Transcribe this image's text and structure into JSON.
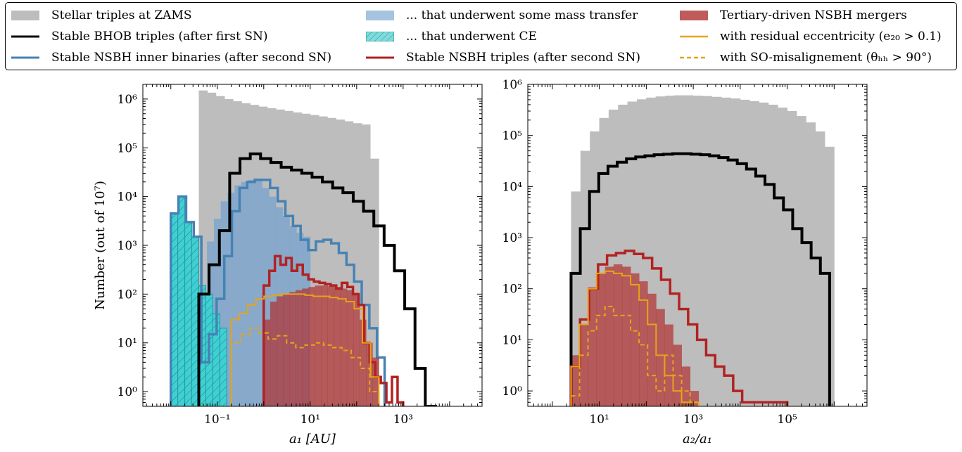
{
  "legend": {
    "items": [
      {
        "key": "zams",
        "label": "Stellar triples at ZAMS",
        "kind": "patch",
        "color": "#bdbdbd"
      },
      {
        "key": "bhob",
        "label": "Stable BHOB triples (after first SN)",
        "kind": "line",
        "color": "#000000"
      },
      {
        "key": "nsbh_inner",
        "label": "Stable NSBH inner binaries (after second SN)",
        "kind": "line",
        "color": "#4682b4"
      },
      {
        "key": "mt",
        "label": "... that underwent some mass transfer",
        "kind": "patch",
        "color": "#a6c3e0"
      },
      {
        "key": "ce",
        "label": "... that underwent CE",
        "kind": "hatch",
        "color": "#7fdcdc"
      },
      {
        "key": "nsbh_triple",
        "label": "Stable NSBH triples (after second SN)",
        "kind": "line",
        "color": "#b22222"
      },
      {
        "key": "merger",
        "label": "Tertiary-driven NSBH mergers",
        "kind": "patch",
        "color": "#c05b5b"
      },
      {
        "key": "ecc",
        "label": "with residual eccentricity (e₂₀ > 0.1)",
        "kind": "line",
        "color": "#e8a317"
      },
      {
        "key": "so",
        "label": "with SO-misalignement (θₕₕ > 90°)",
        "kind": "dash",
        "color": "#e8a317"
      }
    ]
  },
  "chart_data": [
    {
      "type": "histogram",
      "xlabel": "a₁ [AU]",
      "ylabel": "Number (out of 10⁷)",
      "xscale": "log",
      "yscale": "log",
      "xlim": [
        0.0025,
        50000
      ],
      "ylim": [
        0.5,
        2000000
      ],
      "xticks": [
        {
          "v": 0.1,
          "label": "10⁻¹"
        },
        {
          "v": 10,
          "label": "10¹"
        },
        {
          "v": 1000,
          "label": "10³"
        }
      ],
      "yticks": [
        {
          "v": 1,
          "label": "10⁰"
        },
        {
          "v": 10,
          "label": "10¹"
        },
        {
          "v": 100,
          "label": "10²"
        },
        {
          "v": 1000,
          "label": "10³"
        },
        {
          "v": 10000,
          "label": "10⁴"
        },
        {
          "v": 100000,
          "label": "10⁵"
        },
        {
          "v": 1000000,
          "label": "10⁶"
        }
      ],
      "series": [
        {
          "key": "zams",
          "style": "fill",
          "color": "#bdbdbd",
          "edges": [
            0.04,
            300
          ],
          "values": [
            1500000,
            1350000,
            1150000,
            1000000,
            900000,
            820000,
            760000,
            700000,
            650000,
            610000,
            570000,
            530000,
            500000,
            470000,
            440000,
            410000,
            380000,
            350000,
            320000,
            300000,
            60000
          ]
        },
        {
          "key": "mt",
          "style": "fill",
          "color": "#7fa6cc",
          "opacity": 0.85,
          "edges": [
            0.06,
            10
          ],
          "values": [
            1200,
            3500,
            8000,
            12000,
            17000,
            20000,
            22000,
            21000,
            15000,
            10000,
            6000,
            4000,
            2500,
            1800,
            1500
          ]
        },
        {
          "key": "ce",
          "style": "hatch",
          "color": "#3fd0d4",
          "edges": [
            0.01,
            0.16
          ],
          "values": [
            4500,
            10000,
            3000,
            1500,
            150,
            100,
            40,
            20
          ]
        },
        {
          "key": "nsbh_inner",
          "style": "step",
          "color": "#4682b4",
          "lw": 3.5,
          "edges": [
            0.01,
            400
          ],
          "values": [
            4500,
            10000,
            3000,
            1500,
            4,
            15,
            80,
            600,
            5000,
            15000,
            20000,
            22000,
            22000,
            15000,
            8000,
            4000,
            2500,
            1300,
            800,
            1200,
            1300,
            1100,
            700,
            400,
            180,
            60,
            20,
            5
          ]
        },
        {
          "key": "merger",
          "style": "fill",
          "color": "#b03030",
          "opacity": 0.7,
          "edges": [
            1,
            300
          ],
          "values": [
            30,
            70,
            90,
            100,
            110,
            120,
            130,
            140,
            150,
            150,
            145,
            140,
            130,
            120,
            100,
            30,
            10,
            5
          ]
        },
        {
          "key": "nsbh_triple",
          "style": "step",
          "color": "#b22222",
          "lw": 3.5,
          "edges": [
            1,
            1000
          ],
          "values": [
            150,
            300,
            600,
            400,
            550,
            300,
            400,
            250,
            200,
            180,
            170,
            160,
            150,
            130,
            170,
            140,
            100,
            60,
            10,
            4,
            2,
            1.5,
            0.6,
            2,
            0.6
          ]
        },
        {
          "key": "ecc",
          "style": "step",
          "color": "#e8a317",
          "lw": 2,
          "edges": [
            0.2,
            300
          ],
          "values": [
            30,
            40,
            60,
            80,
            90,
            95,
            100,
            100,
            100,
            95,
            90,
            90,
            85,
            80,
            70,
            50,
            10,
            2
          ]
        },
        {
          "key": "so",
          "style": "dashstep",
          "color": "#e8a317",
          "lw": 2,
          "edges": [
            0.2,
            300
          ],
          "values": [
            10,
            15,
            20,
            16,
            12,
            14,
            10,
            8,
            9,
            10,
            9,
            8,
            7,
            5,
            3,
            1
          ]
        },
        {
          "key": "bhob",
          "style": "step",
          "color": "#000000",
          "lw": 4,
          "edges": [
            0.04,
            5000
          ],
          "values": [
            100,
            400,
            2000,
            30000,
            60000,
            75000,
            60000,
            50000,
            40000,
            35000,
            30000,
            25000,
            20000,
            15000,
            12000,
            8000,
            5000,
            2500,
            1000,
            300,
            50,
            3,
            0.5
          ]
        }
      ]
    },
    {
      "type": "histogram",
      "xlabel": "a₂/a₁",
      "ylabel": "",
      "xscale": "log",
      "yscale": "log",
      "xlim": [
        0.3,
        5000000
      ],
      "ylim": [
        0.5,
        1000000
      ],
      "xticks": [
        {
          "v": 10,
          "label": "10¹"
        },
        {
          "v": 1000,
          "label": "10³"
        },
        {
          "v": 100000,
          "label": "10⁵"
        }
      ],
      "yticks": [
        {
          "v": 1,
          "label": "10⁰"
        },
        {
          "v": 10,
          "label": "10¹"
        },
        {
          "v": 100,
          "label": "10²"
        },
        {
          "v": 1000,
          "label": "10³"
        },
        {
          "v": 10000,
          "label": "10⁴"
        },
        {
          "v": 100000,
          "label": "10⁵"
        },
        {
          "v": 1000000,
          "label": "10⁶"
        }
      ],
      "series": [
        {
          "key": "zams",
          "style": "fill",
          "color": "#bdbdbd",
          "edges": [
            2.5,
            1000000
          ],
          "values": [
            8000,
            50000,
            120000,
            220000,
            320000,
            400000,
            460000,
            510000,
            550000,
            580000,
            600000,
            610000,
            610000,
            600000,
            590000,
            570000,
            550000,
            530000,
            500000,
            470000,
            440000,
            400000,
            350000,
            300000,
            240000,
            180000,
            120000,
            60000
          ]
        },
        {
          "key": "merger",
          "style": "fill",
          "color": "#b03030",
          "opacity": 0.7,
          "edges": [
            2.5,
            1300
          ],
          "values": [
            5,
            20,
            100,
            200,
            270,
            300,
            270,
            200,
            140,
            80,
            40,
            20,
            8,
            3,
            1
          ]
        },
        {
          "key": "bhob",
          "style": "step",
          "color": "#000000",
          "lw": 4,
          "edges": [
            2.5,
            800000
          ],
          "values": [
            200,
            1500,
            8000,
            18000,
            25000,
            30000,
            35000,
            38000,
            40000,
            42000,
            43000,
            44000,
            44000,
            43000,
            42000,
            40000,
            37000,
            33000,
            28000,
            22000,
            16000,
            11000,
            6000,
            3500,
            1500,
            800,
            400,
            200
          ]
        },
        {
          "key": "nsbh_triple",
          "style": "step",
          "color": "#b22222",
          "lw": 3.5,
          "edges": [
            2.5,
            100000
          ],
          "values": [
            3,
            25,
            100,
            300,
            450,
            500,
            550,
            480,
            400,
            250,
            150,
            80,
            40,
            20,
            10,
            5,
            3,
            2,
            1,
            0.6,
            0.6,
            0.6,
            0.6,
            0.6
          ]
        },
        {
          "key": "ecc",
          "style": "step",
          "color": "#e8a317",
          "lw": 2,
          "edges": [
            2.5,
            1300
          ],
          "values": [
            3,
            20,
            100,
            200,
            220,
            200,
            180,
            120,
            60,
            20,
            5,
            2,
            1,
            0.6,
            0.6
          ]
        },
        {
          "key": "so",
          "style": "dashstep",
          "color": "#e8a317",
          "lw": 2,
          "edges": [
            2.5,
            1300
          ],
          "values": [
            0.8,
            5,
            15,
            30,
            45,
            30,
            30,
            15,
            8,
            2,
            1,
            5,
            2,
            1,
            0.6
          ]
        }
      ]
    }
  ]
}
